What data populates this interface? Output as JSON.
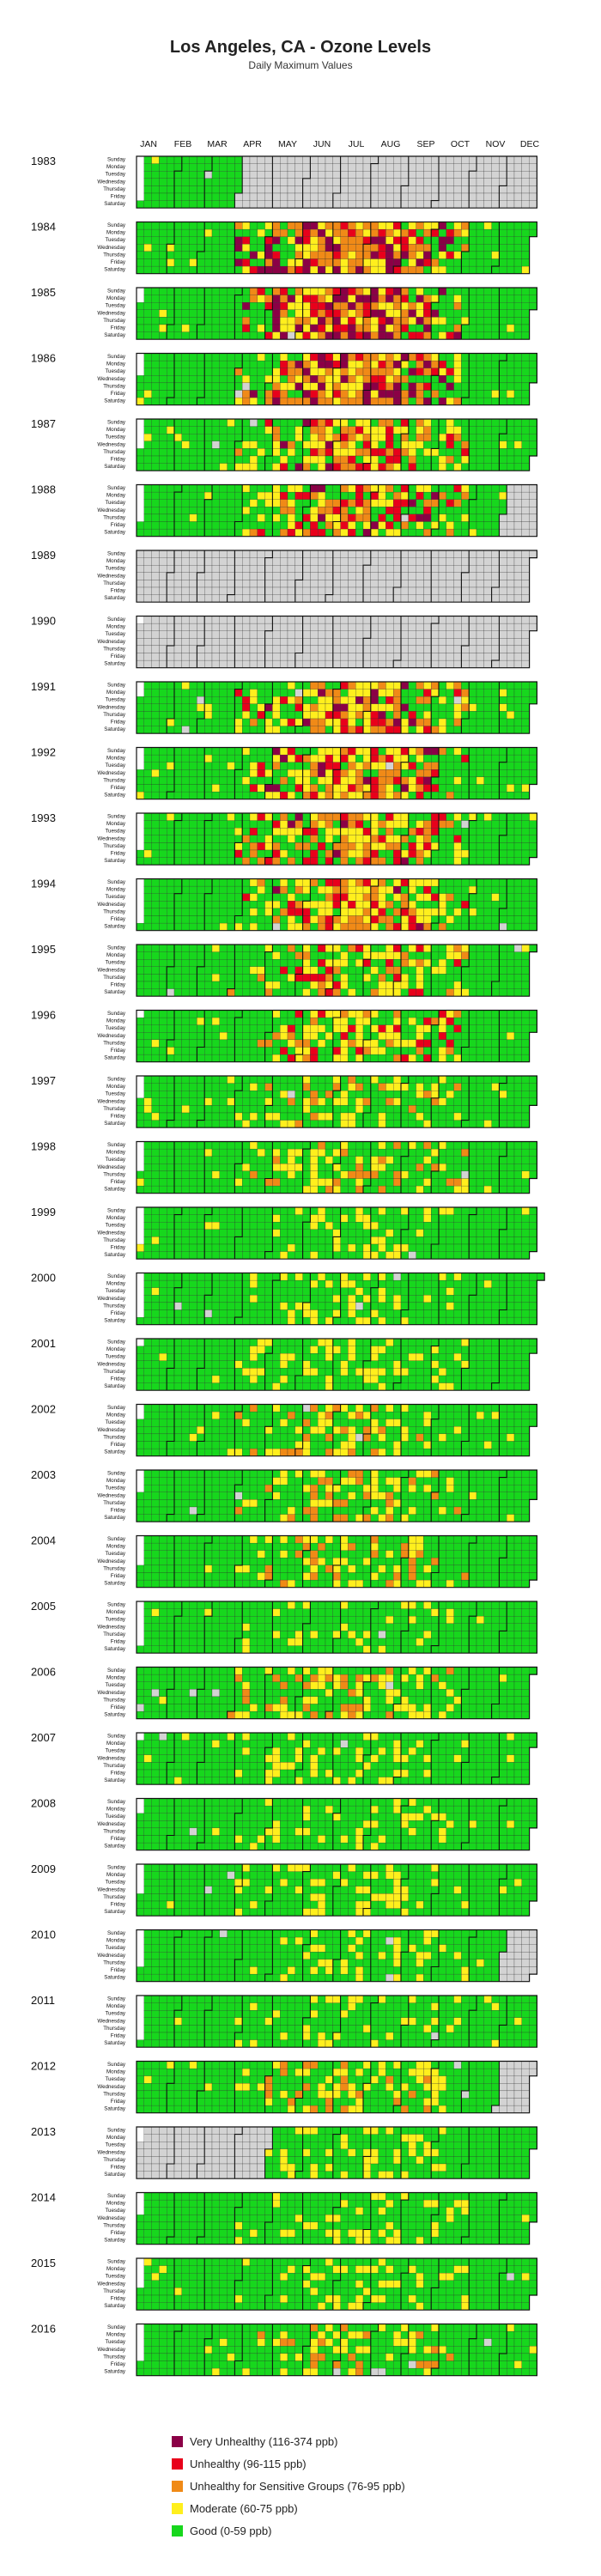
{
  "chart_data": {
    "type": "heatmap",
    "title": "Los Angeles, CA - Ozone Levels",
    "subtitle": "Daily Maximum Values",
    "months": [
      "JAN",
      "FEB",
      "MAR",
      "APR",
      "MAY",
      "JUN",
      "JUL",
      "AUG",
      "SEP",
      "OCT",
      "NOV",
      "DEC"
    ],
    "weekdays": [
      "Sunday",
      "Monday",
      "Tuesday",
      "Wednesday",
      "Thursday",
      "Friday",
      "Saturday"
    ],
    "no_data_color": "#d3d3d3",
    "categories": [
      {
        "key": "very_unhealthy",
        "label": "Very Unhealthy (116-374 ppb)",
        "color": "#8b0046"
      },
      {
        "key": "unhealthy",
        "label": "Unhealthy (96-115 ppb)",
        "color": "#e8001b"
      },
      {
        "key": "usg",
        "label": "Unhealthy for Sensitive Groups (76-95 ppb)",
        "color": "#f08a17"
      },
      {
        "key": "moderate",
        "label": "Moderate (60-75 ppb)",
        "color": "#ffef1d"
      },
      {
        "key": "good",
        "label": "Good (0-59 ppb)",
        "color": "#17d71d"
      }
    ],
    "years": [
      {
        "year": "1983",
        "severity": 1,
        "coverage": "jan-mar"
      },
      {
        "year": "1984",
        "severity": 5,
        "coverage": "full"
      },
      {
        "year": "1985",
        "severity": 5,
        "coverage": "full"
      },
      {
        "year": "1986",
        "severity": 5,
        "coverage": "full"
      },
      {
        "year": "1987",
        "severity": 4,
        "coverage": "full"
      },
      {
        "year": "1988",
        "severity": 4,
        "coverage": "to-nov"
      },
      {
        "year": "1989",
        "severity": 0,
        "coverage": "none"
      },
      {
        "year": "1990",
        "severity": 0,
        "coverage": "none"
      },
      {
        "year": "1991",
        "severity": 4,
        "coverage": "full"
      },
      {
        "year": "1992",
        "severity": 4,
        "coverage": "full"
      },
      {
        "year": "1993",
        "severity": 4,
        "coverage": "full"
      },
      {
        "year": "1994",
        "severity": 4,
        "coverage": "full"
      },
      {
        "year": "1995",
        "severity": 3,
        "coverage": "full"
      },
      {
        "year": "1996",
        "severity": 3,
        "coverage": "full"
      },
      {
        "year": "1997",
        "severity": 2,
        "coverage": "full"
      },
      {
        "year": "1998",
        "severity": 2,
        "coverage": "full"
      },
      {
        "year": "1999",
        "severity": 1,
        "coverage": "full"
      },
      {
        "year": "2000",
        "severity": 1,
        "coverage": "full"
      },
      {
        "year": "2001",
        "severity": 1,
        "coverage": "full"
      },
      {
        "year": "2002",
        "severity": 2,
        "coverage": "full"
      },
      {
        "year": "2003",
        "severity": 2,
        "coverage": "full"
      },
      {
        "year": "2004",
        "severity": 2,
        "coverage": "full"
      },
      {
        "year": "2005",
        "severity": 1,
        "coverage": "full"
      },
      {
        "year": "2006",
        "severity": 2,
        "coverage": "full"
      },
      {
        "year": "2007",
        "severity": 1,
        "coverage": "full"
      },
      {
        "year": "2008",
        "severity": 1,
        "coverage": "full"
      },
      {
        "year": "2009",
        "severity": 1,
        "coverage": "full"
      },
      {
        "year": "2010",
        "severity": 1,
        "coverage": "to-nov"
      },
      {
        "year": "2011",
        "severity": 1,
        "coverage": "full"
      },
      {
        "year": "2012",
        "severity": 2,
        "coverage": "to-nov"
      },
      {
        "year": "2013",
        "severity": 1,
        "coverage": "from-may"
      },
      {
        "year": "2014",
        "severity": 1,
        "coverage": "full"
      },
      {
        "year": "2015",
        "severity": 1,
        "coverage": "full"
      },
      {
        "year": "2016",
        "severity": 2,
        "coverage": "full"
      }
    ]
  }
}
